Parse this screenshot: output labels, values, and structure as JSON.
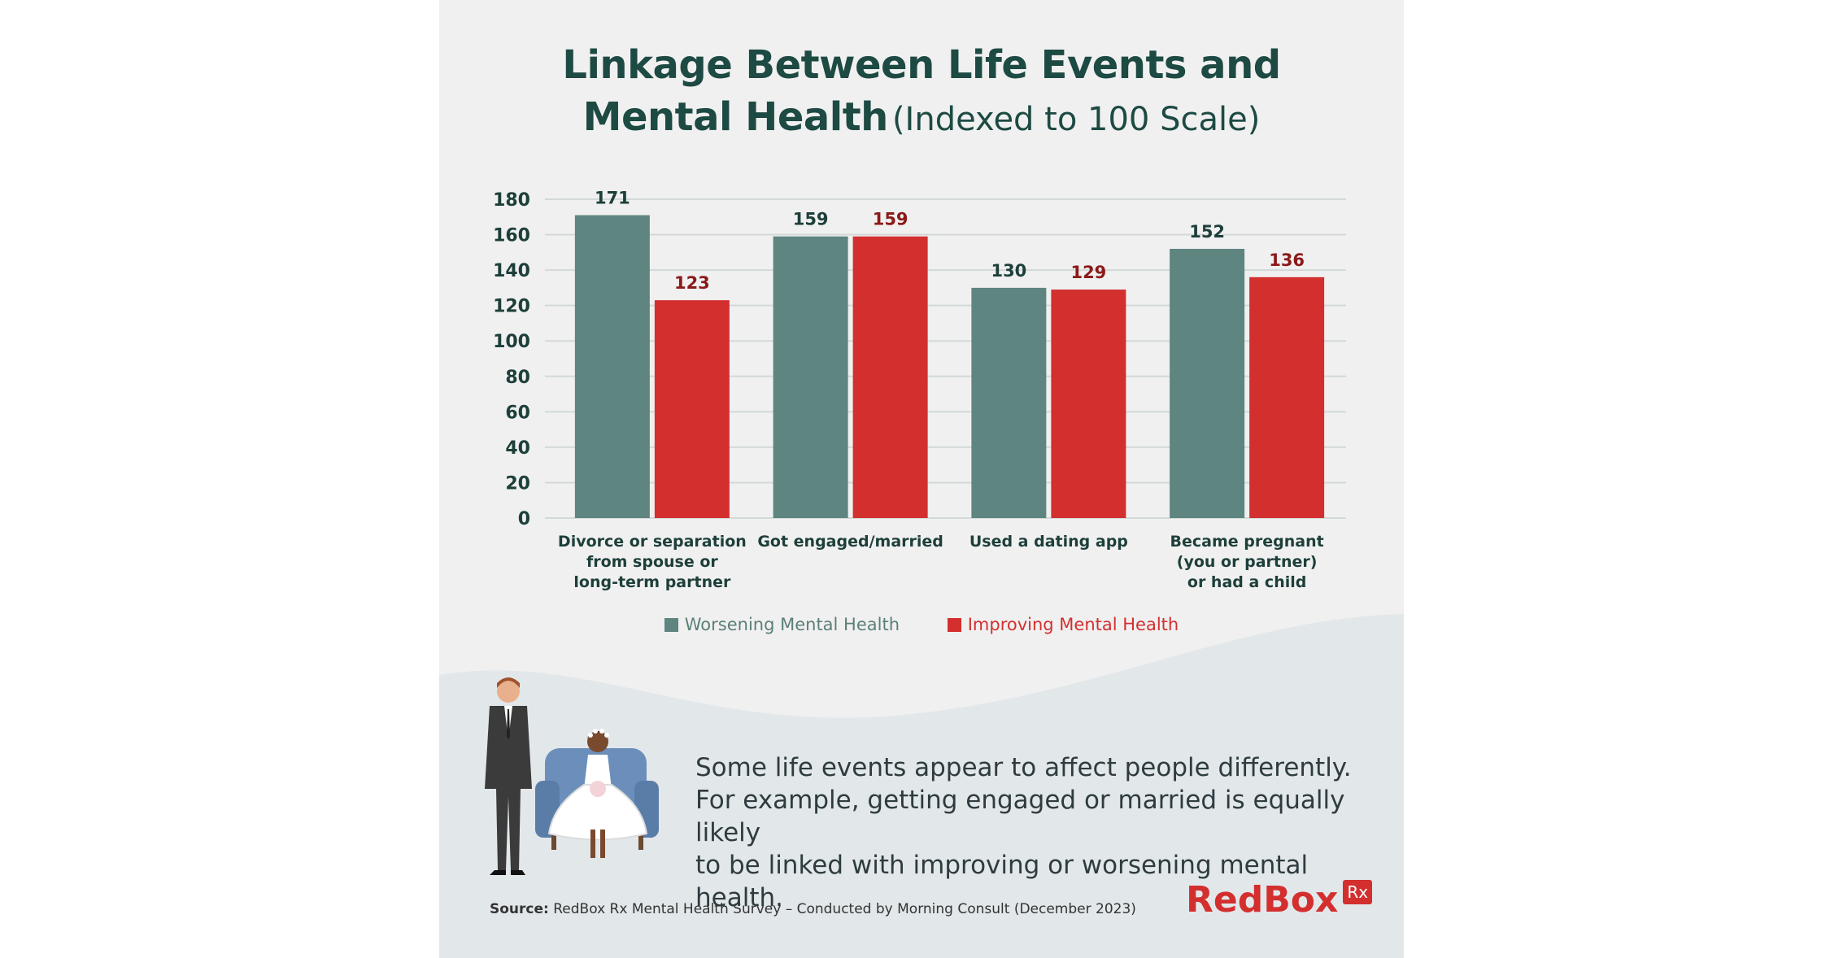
{
  "title": {
    "line1": "Linkage Between Life Events and",
    "line2": "Mental Health",
    "subtitle": "(Indexed to 100 Scale)"
  },
  "chart_data": {
    "type": "bar",
    "categories": [
      [
        "Divorce or separation",
        "from spouse or",
        "long-term partner"
      ],
      [
        "Got engaged/married"
      ],
      [
        "Used a dating app"
      ],
      [
        "Became pregnant",
        "(you or partner)",
        "or had a child"
      ]
    ],
    "series": [
      {
        "name": "Worsening Mental Health",
        "color": "#5e8580",
        "label_color": "#1d3f3a",
        "values": [
          171,
          159,
          130,
          152
        ]
      },
      {
        "name": "Improving Mental Health",
        "color": "#d32f2f",
        "label_color": "#8b1a1a",
        "values": [
          123,
          159,
          129,
          136
        ]
      }
    ],
    "yticks": [
      0,
      20,
      40,
      60,
      80,
      100,
      120,
      140,
      160,
      180
    ],
    "ylim": [
      0,
      180
    ],
    "grid": true,
    "legend_position": "bottom"
  },
  "legend": {
    "worsening": "Worsening Mental Health",
    "improving": "Improving Mental Health"
  },
  "message": {
    "line1": "Some life events appear to affect people differently.",
    "line2": "For example, getting engaged or married is equally likely",
    "line3": "to be linked with improving or worsening mental health."
  },
  "source": {
    "label": "Source:",
    "text": "RedBox Rx Mental Health Survey – Conducted by Morning Consult (December 2023)"
  },
  "logo": {
    "name": "RedBox",
    "badge": "Rx"
  },
  "colors": {
    "accent": "#d32f2f",
    "teal": "#5e8580",
    "title": "#1d4a43",
    "background": "#f0f0f0"
  }
}
